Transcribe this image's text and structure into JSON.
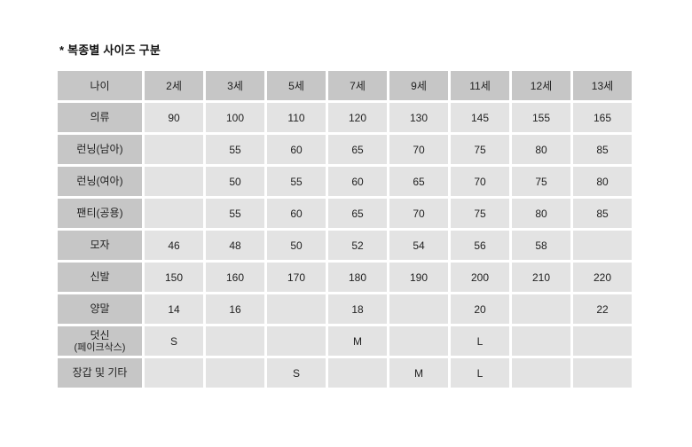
{
  "page": {
    "title": "* 복종별 사이즈 구분"
  },
  "chart_data": {
    "type": "table",
    "title": "복종별 사이즈 구분",
    "columns": [
      "나이",
      "2세",
      "3세",
      "5세",
      "7세",
      "9세",
      "11세",
      "12세",
      "13세"
    ],
    "rows": [
      {
        "label": "의류",
        "values": [
          "90",
          "100",
          "110",
          "120",
          "130",
          "145",
          "155",
          "165"
        ]
      },
      {
        "label": "런닝(남아)",
        "values": [
          "",
          "55",
          "60",
          "65",
          "70",
          "75",
          "80",
          "85"
        ]
      },
      {
        "label": "런닝(여아)",
        "values": [
          "",
          "50",
          "55",
          "60",
          "65",
          "70",
          "75",
          "80"
        ]
      },
      {
        "label": "팬티(공용)",
        "values": [
          "",
          "55",
          "60",
          "65",
          "70",
          "75",
          "80",
          "85"
        ]
      },
      {
        "label": "모자",
        "values": [
          "46",
          "48",
          "50",
          "52",
          "54",
          "56",
          "58",
          ""
        ]
      },
      {
        "label": "신발",
        "values": [
          "150",
          "160",
          "170",
          "180",
          "190",
          "200",
          "210",
          "220"
        ]
      },
      {
        "label": "양말",
        "values": [
          "14",
          "16",
          "",
          "18",
          "",
          "20",
          "",
          "22"
        ]
      },
      {
        "label": "덧신",
        "sublabel": "(페이크삭스)",
        "values": [
          "S",
          "",
          "",
          "M",
          "",
          "L",
          "",
          ""
        ]
      },
      {
        "label": "장갑 및 기타",
        "values": [
          "",
          "",
          "S",
          "",
          "M",
          "L",
          "",
          ""
        ]
      }
    ],
    "layout": {
      "grid": "white 3px gaps between cells",
      "header_position": "top row and left column"
    },
    "colors": {
      "header_bg": "#c6c6c6",
      "cell_bg": "#e3e3e3",
      "gap": "#ffffff",
      "text": "#222222",
      "title_text": "#111111"
    }
  }
}
